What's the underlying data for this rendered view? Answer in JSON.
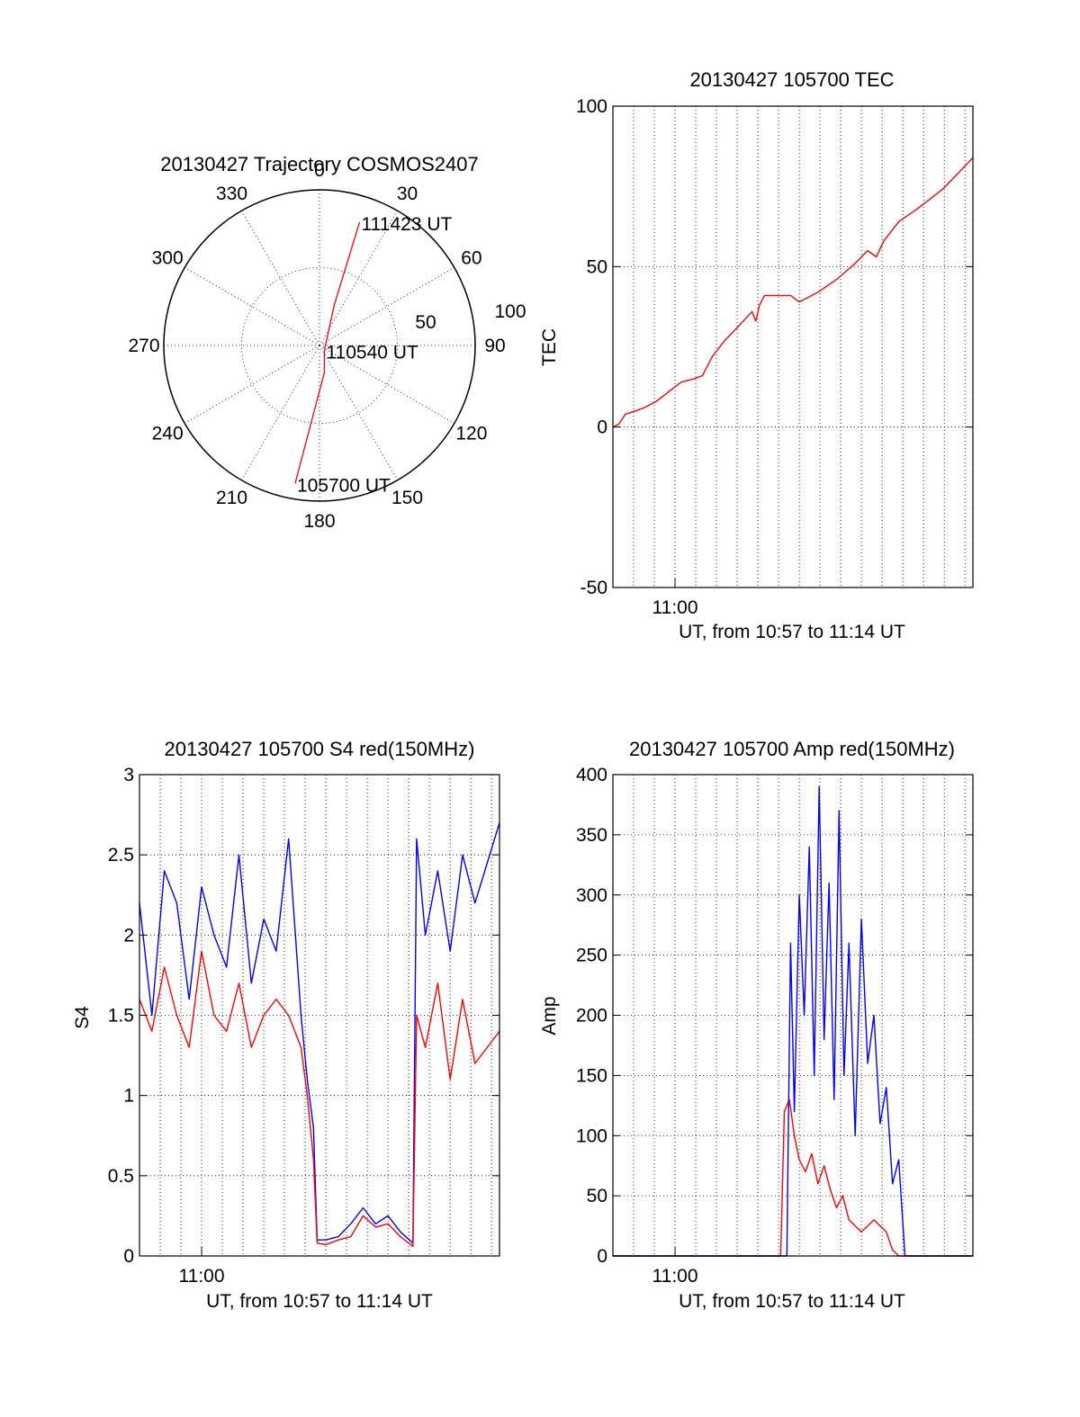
{
  "colors": {
    "red": "#ff0000",
    "blue": "#0000ff",
    "axis": "#000000",
    "grid": "#000000"
  },
  "chart_data": [
    {
      "type": "polar",
      "title": "20130427 Trajectory COSMOS2407",
      "angle_ticks": [
        "0",
        "30",
        "60",
        "90",
        "120",
        "150",
        "180",
        "210",
        "240",
        "270",
        "300",
        "330"
      ],
      "radius_labels": [
        "50",
        "100"
      ],
      "grid": true,
      "series": [
        {
          "color": "red",
          "points": [
            {
              "azimuth": 190,
              "elevation": 9,
              "label": "105700 UT"
            },
            {
              "azimuth": 170,
              "elevation": 74
            },
            {
              "azimuth": 135,
              "elevation": 86,
              "label": "110540 UT"
            },
            {
              "azimuth": 20,
              "elevation": 65
            },
            {
              "azimuth": 18,
              "elevation": 15,
              "label": "111423 UT"
            }
          ]
        }
      ]
    },
    {
      "type": "line",
      "title": "20130427 105700 TEC",
      "ylabel": "TEC",
      "xlabel": "UT, from 10:57 to 11:14 UT",
      "xlim": [
        10.95,
        11.2397
      ],
      "ylim": [
        -50,
        100
      ],
      "yticks": [
        "100",
        "50",
        "0",
        "-50"
      ],
      "xtick_labels": [
        {
          "x": 11.0,
          "label": "11:00"
        }
      ],
      "grid": true,
      "series": [
        {
          "color": "red",
          "x": [
            10.95,
            10.955,
            10.96,
            10.968,
            10.975,
            10.985,
            10.995,
            11.005,
            11.015,
            11.022,
            11.03,
            11.04,
            11.05,
            11.062,
            11.065,
            11.068,
            11.072,
            11.08,
            11.093,
            11.1,
            11.115,
            11.13,
            11.145,
            11.155,
            11.162,
            11.168,
            11.18,
            11.195,
            11.205,
            11.215,
            11.225,
            11.235,
            11.2397
          ],
          "y": [
            0,
            1,
            4,
            5,
            6,
            8,
            11,
            14,
            15,
            16,
            22,
            27,
            31,
            36,
            33,
            38,
            41,
            41,
            41,
            39,
            42,
            46,
            51,
            55,
            53,
            58,
            64,
            68,
            71,
            74,
            78,
            82,
            84
          ]
        }
      ]
    },
    {
      "type": "line",
      "title": "20130427 105700 S4 red(150MHz)",
      "ylabel": "S4",
      "xlabel": "UT, from 10:57 to 11:14 UT",
      "xlim": [
        10.95,
        11.2397
      ],
      "ylim": [
        0,
        3
      ],
      "yticks": [
        "3",
        "2.5",
        "2",
        "1.5",
        "1",
        "0.5",
        "0"
      ],
      "xtick_labels": [
        {
          "x": 11.0,
          "label": "11:00"
        }
      ],
      "grid": true,
      "series": [
        {
          "color": "blue",
          "x": [
            10.95,
            10.96,
            10.97,
            10.98,
            10.99,
            11.0,
            11.01,
            11.02,
            11.03,
            11.04,
            11.05,
            11.06,
            11.07,
            11.08,
            11.085,
            11.09,
            11.093,
            11.1,
            11.11,
            11.12,
            11.13,
            11.14,
            11.15,
            11.16,
            11.17,
            11.173,
            11.18,
            11.19,
            11.2,
            11.21,
            11.22,
            11.2397
          ],
          "y": [
            2.2,
            1.5,
            2.4,
            2.2,
            1.6,
            2.3,
            2.0,
            1.8,
            2.5,
            1.7,
            2.1,
            1.9,
            2.6,
            1.5,
            1.1,
            0.8,
            0.1,
            0.1,
            0.12,
            0.2,
            0.3,
            0.2,
            0.25,
            0.15,
            0.08,
            2.6,
            2.0,
            2.4,
            1.9,
            2.5,
            2.2,
            2.7
          ]
        },
        {
          "color": "red",
          "x": [
            10.95,
            10.96,
            10.97,
            10.98,
            10.99,
            11.0,
            11.01,
            11.02,
            11.03,
            11.04,
            11.05,
            11.06,
            11.07,
            11.08,
            11.085,
            11.09,
            11.093,
            11.1,
            11.11,
            11.12,
            11.13,
            11.14,
            11.15,
            11.16,
            11.17,
            11.173,
            11.18,
            11.19,
            11.2,
            11.21,
            11.22,
            11.2397
          ],
          "y": [
            1.6,
            1.4,
            1.8,
            1.5,
            1.3,
            1.9,
            1.5,
            1.4,
            1.7,
            1.3,
            1.5,
            1.6,
            1.5,
            1.3,
            1.0,
            0.6,
            0.08,
            0.07,
            0.1,
            0.12,
            0.25,
            0.18,
            0.2,
            0.12,
            0.06,
            1.5,
            1.3,
            1.7,
            1.1,
            1.6,
            1.2,
            1.4
          ]
        }
      ]
    },
    {
      "type": "line",
      "title": "20130427 105700 Amp red(150MHz)",
      "ylabel": "Amp",
      "xlabel": "UT, from 10:57 to 11:14 UT",
      "xlim": [
        10.95,
        11.2397
      ],
      "ylim": [
        0,
        400
      ],
      "yticks": [
        "400",
        "350",
        "300",
        "250",
        "200",
        "150",
        "100",
        "50",
        "0"
      ],
      "xtick_labels": [
        {
          "x": 11.0,
          "label": "11:00"
        }
      ],
      "grid": true,
      "series": [
        {
          "color": "red",
          "x": [
            10.95,
            11.085,
            11.088,
            11.092,
            11.096,
            11.1,
            11.105,
            11.11,
            11.115,
            11.12,
            11.125,
            11.13,
            11.135,
            11.14,
            11.145,
            11.15,
            11.155,
            11.16,
            11.165,
            11.17,
            11.175,
            11.18,
            11.2397
          ],
          "y": [
            0,
            0,
            120,
            130,
            100,
            80,
            70,
            85,
            60,
            75,
            55,
            40,
            50,
            30,
            25,
            20,
            25,
            30,
            25,
            20,
            5,
            0,
            0
          ]
        },
        {
          "color": "blue",
          "x": [
            10.95,
            11.09,
            11.093,
            11.096,
            11.1,
            11.104,
            11.108,
            11.112,
            11.116,
            11.12,
            11.124,
            11.128,
            11.132,
            11.136,
            11.14,
            11.145,
            11.15,
            11.155,
            11.16,
            11.165,
            11.17,
            11.175,
            11.18,
            11.185,
            11.2397
          ],
          "y": [
            0,
            0,
            260,
            120,
            300,
            200,
            340,
            150,
            390,
            180,
            310,
            130,
            370,
            150,
            260,
            100,
            280,
            160,
            200,
            110,
            140,
            60,
            80,
            0,
            0
          ]
        }
      ]
    }
  ]
}
